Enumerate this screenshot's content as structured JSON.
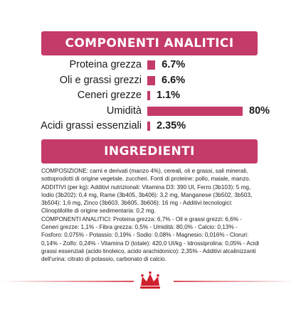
{
  "colors": {
    "accent": "#c43a68",
    "text": "#1a1a1a"
  },
  "analytics": {
    "title": "COMPONENTI ANALITICI",
    "rows": [
      {
        "label": "Proteina grezza",
        "value_label": "6.7%",
        "value": 6.7
      },
      {
        "label": "Oli e grassi grezzi",
        "value_label": "6.6%",
        "value": 6.6
      },
      {
        "label": "Ceneri grezze",
        "value_label": "1.1%",
        "value": 1.1
      },
      {
        "label": "Umidità",
        "value_label": "80%",
        "value": 80
      },
      {
        "label": "Acidi grassi essenziali",
        "value_label": "2.35%",
        "value": 2.35
      }
    ]
  },
  "ingredients": {
    "title": "INGREDIENTI",
    "text": "COMPOSIZIONE: carni e derivati (manzo 4%), cereali, oli e grassi, sali minerali, sottoprodotti di origine vegetale, zuccheri. Fonti di proteine: pollo, maiale, manzo.\nADDITIVI (per kg): Additivi nutrizionali: Vitamina D3: 390 UI, Ferro (3b103): 5 mg, Iodio (3b202): 0,4 mg, Rame (3b405, 3b406): 3,2 mg, Manganese (3b502, 3b503, 3b504): 1,6 mg, Zinco (3b603, 3b605, 3b606): 16 mg - Additivi tecnologici: Clinoptilolite di origine sedimentaria: 0,2 mg.\nCOMPONENTI ANALITICI: Proteina grezza: 6,7% - Oli e grassi grezzi: 6,6% - Ceneri grezze: 1,1% - Fibra grezza: 0,5% - Umidità: 80,0% - Calcio: 0,13% - Fosforo: 0,075% - Potassio: 0,19% - Sodio: 0,08% - Magnesio: 0,016% - Cloruri: 0,14% - Zolfo: 0,24% - Vitamina D (totale): 420,0 UI/kg - Idrossiprolina: 0,05% - Acidi grassi essenziali (acido linoleico, acido arachidonico): 2,35% - Additivi alcalinizzanti dell'urina: citrato di potassio, carbonato di calcio."
  }
}
